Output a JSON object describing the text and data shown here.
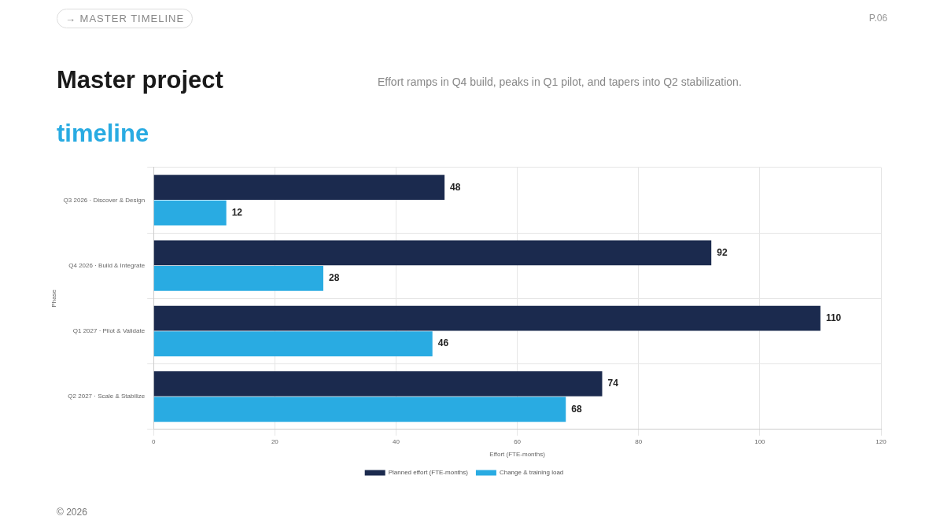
{
  "chart_data": {
    "type": "bar",
    "orientation": "horizontal",
    "title": "Master project timeline",
    "subtitle": "Effort ramps in Q4 build, peaks in Q1 pilot, and tapers into Q2 stabilization.",
    "xlabel": "Effort (FTE-months)",
    "ylabel": "Phase",
    "annotations": [
      "→ MASTER TIMELINE",
      "P.06",
      "© 2026"
    ],
    "categories": [
      "Q3 2026 · Discover & Design",
      "Q4 2026 · Build & Integrate",
      "Q1 2027 · Pilot & Validate",
      "Q2 2027 · Scale & Stabilize"
    ],
    "series": [
      {
        "name": "Planned effort (FTE-months)",
        "color": "#1b2a4e",
        "values": [
          48,
          92,
          110,
          74
        ]
      },
      {
        "name": "Change & training load",
        "color": "#29abe2",
        "values": [
          12,
          28,
          46,
          68
        ]
      }
    ],
    "xlim": [
      0,
      120
    ],
    "xticks": [
      0,
      20,
      40,
      60,
      80,
      100,
      120
    ],
    "grid": true,
    "legend": "bottom",
    "data_labels": true
  }
}
